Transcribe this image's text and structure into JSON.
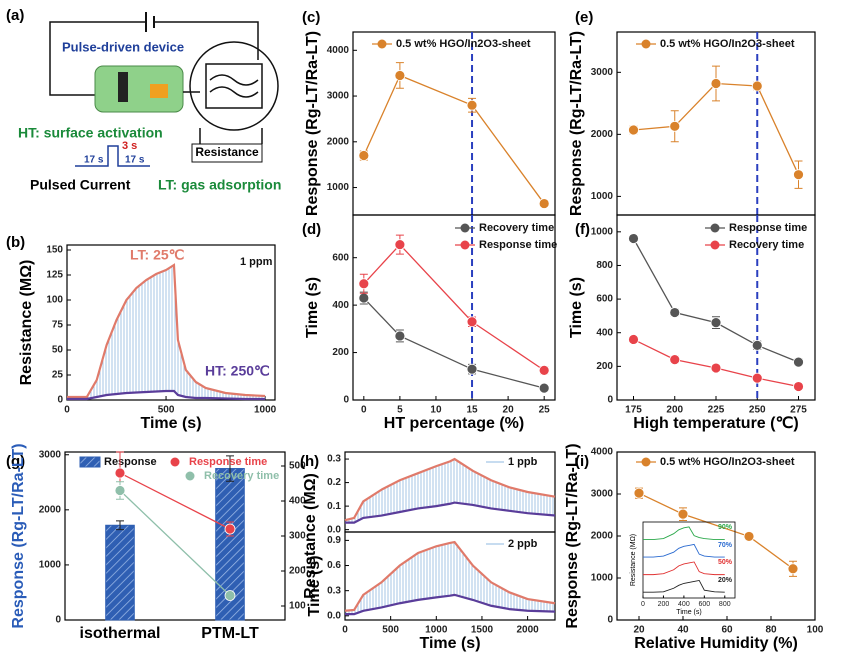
{
  "diagram": {
    "label": "(a)",
    "device": "Pulse-driven device",
    "ht": "HT: surface activation",
    "pulse_width": "3 s",
    "low_time_1": "17 s",
    "low_time_2": "17 s",
    "resistance": "Resistance",
    "pulsed": "Pulsed Current",
    "lt": "LT: gas adsorption"
  },
  "chart_data": [
    {
      "type": "line",
      "label": "(b)",
      "xlabel": "Time (s)",
      "ylabel": "Resistance (MΩ)",
      "annotation": "1 ppm",
      "x": [
        0,
        100,
        150,
        200,
        250,
        300,
        350,
        400,
        450,
        500,
        540,
        560,
        600,
        650,
        700,
        800,
        900,
        1000
      ],
      "series": [
        {
          "name": "LT: 25℃",
          "color": "#e07a6a",
          "values": [
            3,
            3,
            20,
            55,
            80,
            100,
            112,
            120,
            126,
            130,
            135,
            60,
            30,
            18,
            12,
            7,
            5,
            4
          ]
        },
        {
          "name": "HT: 250℃",
          "color": "#5a3d9a",
          "values": [
            1,
            1,
            3,
            5,
            6,
            7,
            7.5,
            8,
            8.5,
            9,
            9,
            5,
            3,
            2,
            2,
            1.5,
            1,
            1
          ]
        }
      ],
      "fill_between": true,
      "xlim": [
        0,
        1050
      ],
      "ylim": [
        0,
        155
      ],
      "xticks": [
        0,
        500,
        1000
      ],
      "yticks": [
        0,
        25,
        50,
        75,
        100,
        125,
        150
      ]
    },
    {
      "type": "line",
      "label": "(c)",
      "ylabel": "Response (Rg-LT/Ra-LT)",
      "x": [
        0,
        5,
        15,
        25
      ],
      "markers": true,
      "legend": "upper left",
      "series": [
        {
          "name": "0.5 wt% HGO/In2O3-sheet",
          "color": "#d9822b",
          "values": [
            1700,
            3450,
            2800,
            650
          ],
          "errors": [
            100,
            280,
            150,
            50
          ]
        }
      ],
      "reference_x": 15,
      "xlim": [
        -1.5,
        26.5
      ],
      "ylim": [
        400,
        4400
      ],
      "yticks": [
        1000,
        2000,
        3000,
        4000
      ]
    },
    {
      "type": "line",
      "label": "(d)",
      "xlabel": "HT percentage (%)",
      "ylabel": "Time (s)",
      "x": [
        0,
        5,
        15,
        25
      ],
      "markers": true,
      "legend": "upper right",
      "series": [
        {
          "name": "Recovery time",
          "color": "#555555",
          "values": [
            430,
            270,
            130,
            50
          ],
          "errors": [
            25,
            25,
            20,
            10
          ]
        },
        {
          "name": "Response time",
          "color": "#e8434a",
          "values": [
            490,
            655,
            330,
            125
          ],
          "errors": [
            40,
            40,
            20,
            15
          ]
        }
      ],
      "reference_x": 15,
      "xlim": [
        -1.5,
        26.5
      ],
      "ylim": [
        0,
        780
      ],
      "xticks": [
        0,
        5,
        10,
        15,
        20,
        25
      ],
      "yticks": [
        0,
        200,
        400,
        600
      ]
    },
    {
      "type": "line",
      "label": "(e)",
      "ylabel": "Response (Rg-LT/Ra-LT)",
      "x": [
        175,
        200,
        225,
        250,
        275
      ],
      "markers": true,
      "legend": "upper left",
      "series": [
        {
          "name": "0.5 wt% HGO/In2O3-sheet",
          "color": "#d9822b",
          "values": [
            2070,
            2130,
            2820,
            2780,
            1350
          ],
          "errors": [
            60,
            250,
            280,
            60,
            220
          ]
        }
      ],
      "reference_x": 250,
      "xlim": [
        165,
        285
      ],
      "ylim": [
        700,
        3650
      ],
      "yticks": [
        1000,
        2000,
        3000
      ]
    },
    {
      "type": "line",
      "label": "(f)",
      "xlabel": "High temperature (℃)",
      "ylabel": "Time (s)",
      "x": [
        175,
        200,
        225,
        250,
        275
      ],
      "markers": true,
      "legend": "upper right",
      "series": [
        {
          "name": "Response time",
          "color": "#555555",
          "values": [
            960,
            520,
            460,
            325,
            225
          ],
          "errors": [
            15,
            20,
            35,
            25,
            20
          ]
        },
        {
          "name": "Recovery time",
          "color": "#e8434a",
          "values": [
            360,
            240,
            190,
            130,
            80
          ],
          "errors": [
            15,
            20,
            15,
            10,
            10
          ]
        }
      ],
      "reference_x": 250,
      "xlim": [
        165,
        285
      ],
      "ylim": [
        0,
        1100
      ],
      "xticks": [
        175,
        200,
        225,
        250,
        275
      ],
      "yticks": [
        0,
        200,
        400,
        600,
        800,
        1000
      ]
    },
    {
      "type": "combo",
      "label": "(g)",
      "ylabel": "Response (Rg-LT/Ra-LT)",
      "ylabel_color": "#2a5cb8",
      "y2label": "Time (s)",
      "categories": [
        "isothermal",
        "PTM-LT"
      ],
      "markers": true,
      "legend": "upper left",
      "series": [
        {
          "name": "Response",
          "type": "bar",
          "color": "#2f5fb3",
          "values": [
            1720,
            2750
          ],
          "errors": [
            80,
            230
          ]
        },
        {
          "name": "Response time",
          "color": "#e8434a",
          "axis": "y2",
          "values": [
            480,
            320
          ],
          "errors": [
            60,
            20
          ]
        },
        {
          "name": "Recovery time",
          "color": "#8fbfaa",
          "axis": "y2",
          "values": [
            430,
            130
          ],
          "errors": [
            25,
            10
          ]
        }
      ],
      "ylim": [
        0,
        3050
      ],
      "yticks": [
        0,
        1000,
        2000,
        3000
      ],
      "y2lim": [
        60,
        540
      ],
      "y2ticks": [
        100,
        200,
        300,
        400,
        500
      ]
    },
    {
      "type": "line",
      "label": "(h)",
      "ylabel": "Resistance (MΩ)",
      "annotation": "1 ppb",
      "x": [
        0,
        100,
        200,
        400,
        600,
        800,
        1000,
        1150,
        1200,
        1400,
        1600,
        1800,
        2000,
        2300
      ],
      "series": [
        {
          "color": "#e07a6a",
          "values": [
            0.04,
            0.05,
            0.12,
            0.17,
            0.21,
            0.24,
            0.27,
            0.29,
            0.3,
            0.25,
            0.21,
            0.18,
            0.16,
            0.14
          ]
        },
        {
          "color": "#5a3d9a",
          "values": [
            0.03,
            0.03,
            0.05,
            0.06,
            0.075,
            0.09,
            0.1,
            0.11,
            0.115,
            0.105,
            0.09,
            0.08,
            0.07,
            0.06
          ]
        }
      ],
      "fill_between": true,
      "xlim": [
        0,
        2300
      ],
      "ylim": [
        -0.01,
        0.33
      ],
      "yticks": [
        {
          "value": 0,
          "label": "0.0"
        },
        0.1,
        0.2,
        0.3
      ]
    },
    {
      "type": "line",
      "xlabel": "Time (s)",
      "annotation": "2 ppb",
      "x": [
        0,
        100,
        200,
        400,
        600,
        800,
        1000,
        1150,
        1200,
        1400,
        1600,
        1800,
        2000,
        2300
      ],
      "series": [
        {
          "color": "#e07a6a",
          "values": [
            0.06,
            0.07,
            0.25,
            0.4,
            0.6,
            0.75,
            0.83,
            0.87,
            0.88,
            0.6,
            0.4,
            0.28,
            0.2,
            0.15
          ]
        },
        {
          "color": "#5a3d9a",
          "values": [
            0.02,
            0.02,
            0.06,
            0.1,
            0.15,
            0.19,
            0.22,
            0.24,
            0.25,
            0.19,
            0.12,
            0.08,
            0.06,
            0.05
          ]
        }
      ],
      "fill_between": true,
      "xlim": [
        0,
        2300
      ],
      "ylim": [
        -0.05,
        1.0
      ],
      "xticks": [
        0,
        500,
        1000,
        1500,
        2000
      ],
      "yticks": [
        {
          "value": 0,
          "label": "0.0"
        },
        0.3,
        0.6,
        0.9
      ]
    },
    {
      "type": "line",
      "label": "(i)",
      "xlabel": "Relative Humidity (%)",
      "ylabel": "Response (Rg-LT/Ra-LT)",
      "x": [
        20,
        40,
        70,
        90
      ],
      "markers": true,
      "legend": "upper right",
      "series": [
        {
          "name": "0.5 wt% HGO/In2O3-sheet",
          "color": "#d9822b",
          "values": [
            3020,
            2520,
            1990,
            1220
          ],
          "errors": [
            120,
            150,
            60,
            180
          ]
        }
      ],
      "xlim": [
        10,
        100
      ],
      "ylim": [
        0,
        4000
      ],
      "xticks": [
        20,
        40,
        60,
        80,
        100
      ],
      "yticks": [
        0,
        1000,
        2000,
        3000,
        4000
      ]
    },
    {
      "type": "line",
      "xlabel": "Time (s)",
      "ylabel": "Resistance (MΩ)",
      "x": [
        0,
        100,
        200,
        300,
        350,
        400,
        450,
        500,
        550,
        600,
        700,
        800
      ],
      "series": [
        {
          "name": "90%",
          "color": "#2aa84a",
          "values": [
            3.3,
            3.3,
            3.35,
            3.6,
            3.8,
            3.9,
            3.95,
            3.5,
            3.4,
            3.35,
            3.3,
            3.3
          ]
        },
        {
          "name": "70%",
          "color": "#2a6ad0",
          "values": [
            2.4,
            2.4,
            2.45,
            2.65,
            2.85,
            2.95,
            3.0,
            3.05,
            2.55,
            2.45,
            2.4,
            2.4
          ]
        },
        {
          "name": "50%",
          "color": "#e03030",
          "values": [
            1.5,
            1.5,
            1.55,
            1.75,
            1.95,
            2.05,
            2.1,
            2.15,
            1.65,
            1.55,
            1.5,
            1.5
          ]
        },
        {
          "name": "20%",
          "color": "#222222",
          "values": [
            0.6,
            0.6,
            0.62,
            0.8,
            0.95,
            1.05,
            1.1,
            1.15,
            1.2,
            0.7,
            0.62,
            0.6
          ]
        }
      ],
      "xlim": [
        0,
        900
      ],
      "ylim": [
        0.3,
        4.2
      ],
      "xticks": [
        0,
        200,
        400,
        600,
        800
      ]
    }
  ]
}
